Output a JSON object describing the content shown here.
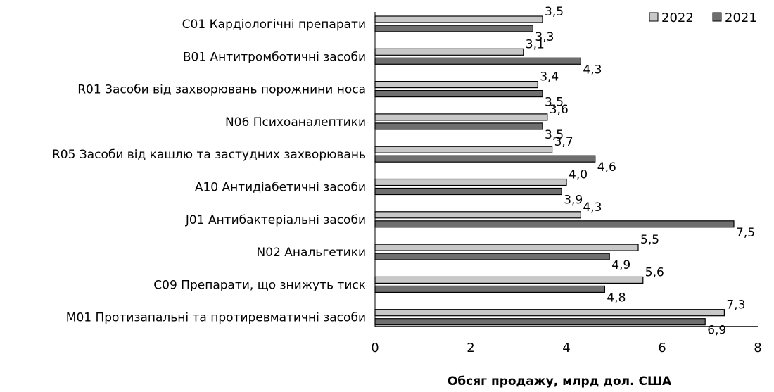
{
  "chart_data": {
    "type": "bar",
    "orientation": "horizontal",
    "categories": [
      "C01 Кардіологічні препарати",
      "B01 Антитромботичні засоби",
      "R01 Засоби від захворювань порожнини носа",
      "N06 Психоаналептики",
      "R05 Засоби від кашлю та застудних захворювань",
      "A10 Антидіабетичні засоби",
      "J01 Антибактеріальні засоби",
      "N02 Анальгетики",
      "C09 Препарати, що знижуть тиск",
      "M01 Протизапальні та протиревматичні засоби"
    ],
    "series": [
      {
        "name": "2022",
        "color": "#c8c8c8",
        "values": [
          3.5,
          3.1,
          3.4,
          3.6,
          3.7,
          4.0,
          4.3,
          5.5,
          5.6,
          7.3
        ],
        "labels": [
          "3,5",
          "3,1",
          "3,4",
          "3,6",
          "3,7",
          "4,0",
          "4,3",
          "5,5",
          "5,6",
          "7,3"
        ]
      },
      {
        "name": "2021",
        "color": "#6e6e6e",
        "values": [
          3.3,
          4.3,
          3.5,
          3.5,
          4.6,
          3.9,
          7.5,
          4.9,
          4.8,
          6.9
        ],
        "labels": [
          "3,3",
          "4,3",
          "3,5",
          "3,5",
          "4,6",
          "3,9",
          "7,5",
          "4,9",
          "4,8",
          "6,9"
        ]
      }
    ],
    "xlim": [
      0,
      8
    ],
    "xticks": [
      0,
      2,
      4,
      6,
      8
    ],
    "xlabel": "Обсяг продажу, млрд дол. США",
    "ylabel": "",
    "title": "",
    "grid": false,
    "legend_position": "top-right"
  }
}
